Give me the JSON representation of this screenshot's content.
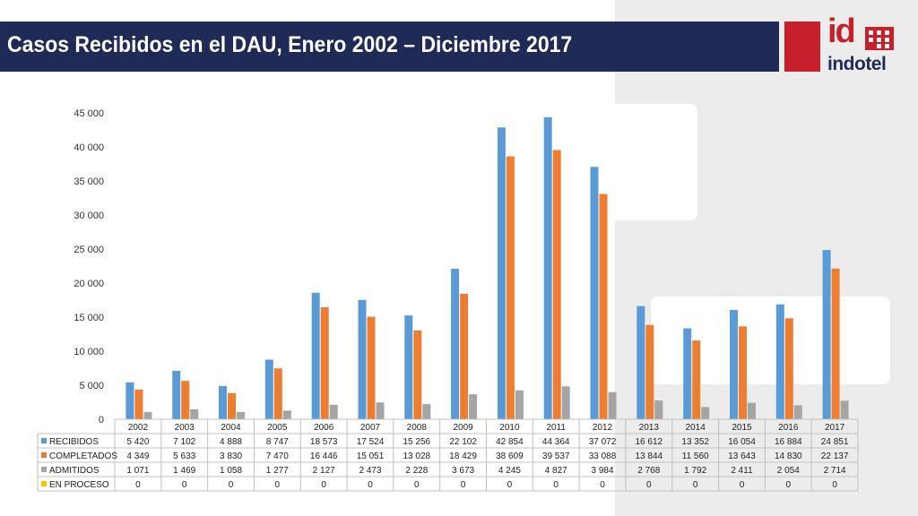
{
  "slide": {
    "title": "Casos Recibidos en el DAU, Enero 2002 – Diciembre 2017"
  },
  "logo": {
    "mark": "id",
    "wordmark": "indotel",
    "brand_color": "#c8202b",
    "navy": "#1f2a57"
  },
  "chart_data": {
    "type": "bar",
    "categories": [
      "2002",
      "2003",
      "2004",
      "2005",
      "2006",
      "2007",
      "2008",
      "2009",
      "2010",
      "2011",
      "2012",
      "2013",
      "2014",
      "2015",
      "2016",
      "2017"
    ],
    "series": [
      {
        "name": "RECIBIDOS",
        "color": "#5b9bd5",
        "values": [
          5420,
          7102,
          4888,
          8747,
          18573,
          17524,
          15256,
          22102,
          42854,
          44364,
          37072,
          16612,
          13352,
          16054,
          16884,
          24851
        ],
        "labels": [
          "5 420",
          "7 102",
          "4 888",
          "8 747",
          "18 573",
          "17 524",
          "15 256",
          "22 102",
          "42 854",
          "44 364",
          "37 072",
          "16 612",
          "13 352",
          "16 054",
          "16 884",
          "24 851"
        ]
      },
      {
        "name": "COMPLETADOS",
        "color": "#ed7d31",
        "values": [
          4349,
          5633,
          3830,
          7470,
          16446,
          15051,
          13028,
          18429,
          38609,
          39537,
          33088,
          13844,
          11560,
          13643,
          14830,
          22137
        ],
        "labels": [
          "4 349",
          "5 633",
          "3 830",
          "7 470",
          "16 446",
          "15 051",
          "13 028",
          "18 429",
          "38 609",
          "39 537",
          "33 088",
          "13 844",
          "11 560",
          "13 643",
          "14 830",
          "22 137"
        ]
      },
      {
        "name": "ADMITIDOS",
        "color": "#a5a5a5",
        "values": [
          1071,
          1469,
          1058,
          1277,
          2127,
          2473,
          2228,
          3673,
          4245,
          4827,
          3984,
          2768,
          1792,
          2411,
          2054,
          2714
        ],
        "labels": [
          "1 071",
          "1 469",
          "1 058",
          "1 277",
          "2 127",
          "2 473",
          "2 228",
          "3 673",
          "4 245",
          "4 827",
          "3 984",
          "2 768",
          "1 792",
          "2 411",
          "2 054",
          "2 714"
        ]
      },
      {
        "name": "EN PROCESO",
        "color": "#ffc000",
        "values": [
          0,
          0,
          0,
          0,
          0,
          0,
          0,
          0,
          0,
          0,
          0,
          0,
          0,
          0,
          0,
          0
        ],
        "labels": [
          "0",
          "0",
          "0",
          "0",
          "0",
          "0",
          "0",
          "0",
          "0",
          "0",
          "0",
          "0",
          "0",
          "0",
          "0",
          "0"
        ]
      }
    ],
    "ylim": [
      0,
      45000
    ],
    "yticks": [
      0,
      5000,
      10000,
      15000,
      20000,
      25000,
      30000,
      35000,
      40000,
      45000
    ],
    "ytick_labels": [
      "0",
      "5 000",
      "10 000",
      "15 000",
      "20 000",
      "25 000",
      "30 000",
      "35 000",
      "40 000",
      "45 000"
    ],
    "grid": false,
    "data_table": true
  }
}
